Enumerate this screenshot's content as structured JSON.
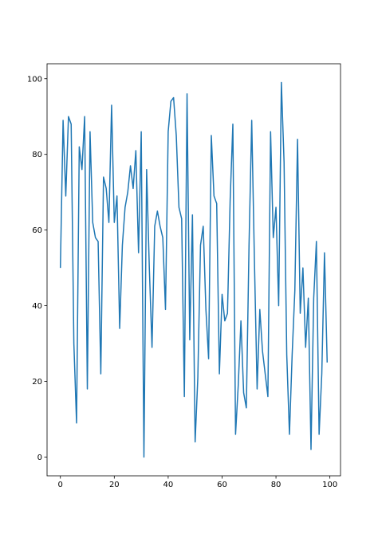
{
  "chart_data": {
    "type": "line",
    "x": [
      0,
      1,
      2,
      3,
      4,
      5,
      6,
      7,
      8,
      9,
      10,
      11,
      12,
      13,
      14,
      15,
      16,
      17,
      18,
      19,
      20,
      21,
      22,
      23,
      24,
      25,
      26,
      27,
      28,
      29,
      30,
      31,
      32,
      33,
      34,
      35,
      36,
      37,
      38,
      39,
      40,
      41,
      42,
      43,
      44,
      45,
      46,
      47,
      48,
      49,
      50,
      51,
      52,
      53,
      54,
      55,
      56,
      57,
      58,
      59,
      60,
      61,
      62,
      63,
      64,
      65,
      66,
      67,
      68,
      69,
      70,
      71,
      72,
      73,
      74,
      75,
      76,
      77,
      78,
      79,
      80,
      81,
      82,
      83,
      84,
      85,
      86,
      87,
      88,
      89,
      90,
      91,
      92,
      93,
      94,
      95,
      96,
      97,
      98,
      99
    ],
    "series": [
      {
        "color": "#1f77b4",
        "values": [
          50,
          89,
          69,
          90,
          88,
          30,
          9,
          82,
          76,
          90,
          18,
          86,
          62,
          58,
          57,
          22,
          74,
          71,
          62,
          93,
          62,
          69,
          34,
          56,
          66,
          70,
          77,
          71,
          81,
          54,
          86,
          0,
          76,
          50,
          29,
          61,
          65,
          61,
          58,
          39,
          86,
          94,
          95,
          85,
          66,
          63,
          16,
          96,
          31,
          64,
          4,
          21,
          56,
          61,
          39,
          26,
          85,
          69,
          67,
          22,
          43,
          36,
          38,
          68,
          88,
          6,
          19,
          36,
          17,
          13,
          56,
          89,
          52,
          18,
          39,
          28,
          22,
          16,
          86,
          58,
          66,
          40,
          99,
          78,
          27,
          6,
          27,
          44,
          84,
          38,
          50,
          29,
          42,
          2,
          42,
          57,
          6,
          22,
          54,
          25
        ]
      }
    ],
    "xlim": [
      -4.95,
      103.95
    ],
    "xticks": [
      0,
      20,
      40,
      60,
      80,
      100
    ],
    "ylim": [
      -4.95,
      103.95
    ],
    "yticks": [
      0,
      20,
      40,
      60,
      80,
      100
    ]
  }
}
